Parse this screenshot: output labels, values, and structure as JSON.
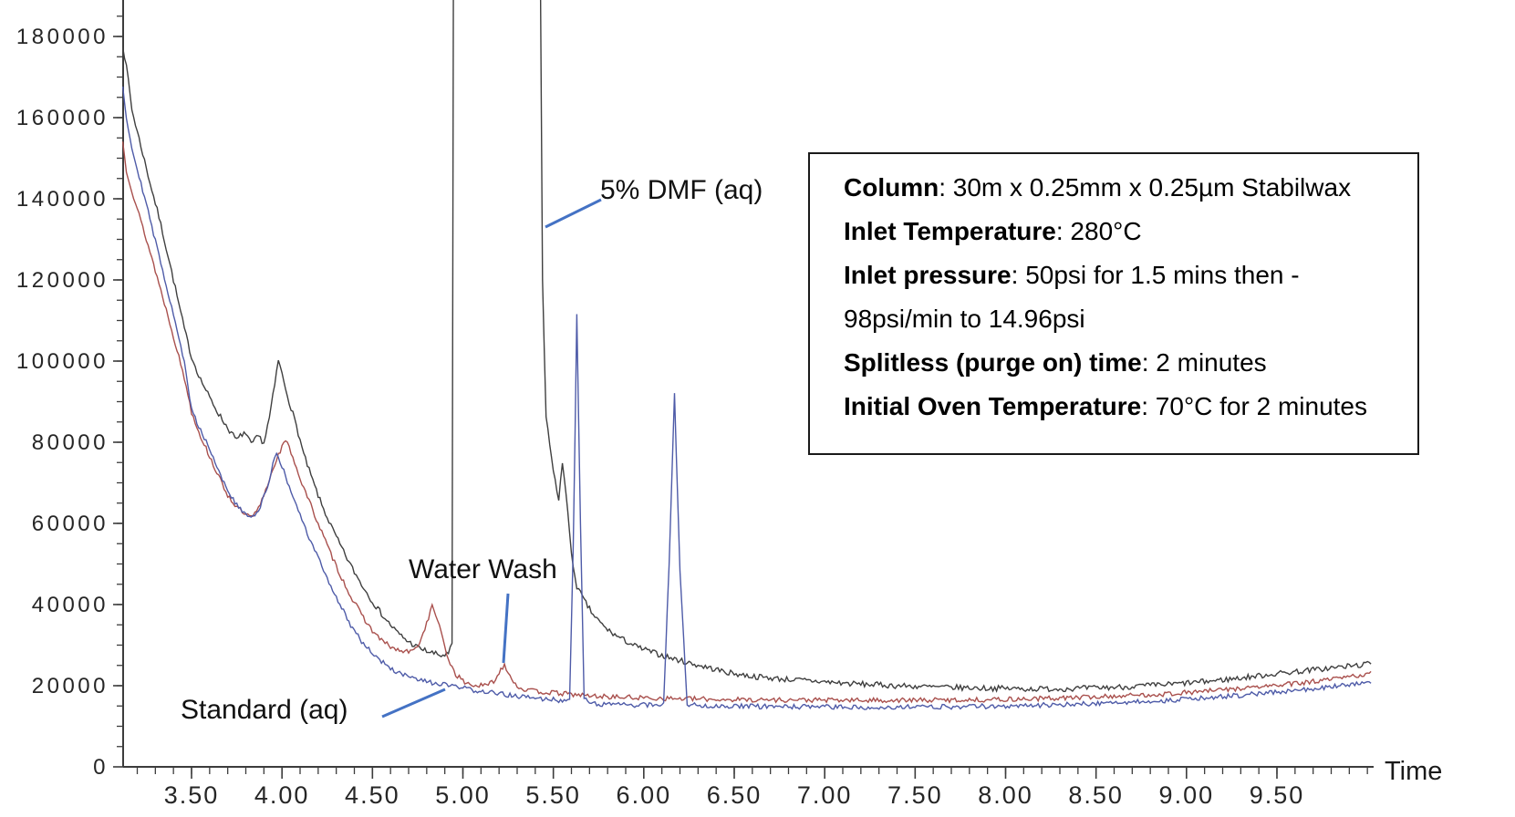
{
  "chart_data": {
    "type": "line",
    "title": "",
    "xlabel": "Time",
    "ylabel": "",
    "xlim": [
      3.12,
      10.03
    ],
    "ylim": [
      0,
      189000
    ],
    "grid": false,
    "legend_position": "none",
    "x_axis": {
      "label": "Time",
      "major_ticks": [
        3.5,
        4.0,
        4.5,
        5.0,
        5.5,
        6.0,
        6.5,
        7.0,
        7.5,
        8.0,
        8.5,
        9.0,
        9.5
      ],
      "major_tick_labels": [
        "3.50",
        "4.00",
        "4.50",
        "5.00",
        "5.50",
        "6.00",
        "6.50",
        "7.00",
        "7.50",
        "8.00",
        "8.50",
        "9.00",
        "9.50"
      ],
      "minor_step": 0.1,
      "minor_start": 3.2,
      "minor_end": 10.0
    },
    "y_axis": {
      "major_ticks": [
        0,
        20000,
        40000,
        60000,
        80000,
        100000,
        120000,
        140000,
        160000,
        180000
      ],
      "major_tick_labels": [
        "0",
        "20000",
        "40000",
        "60000",
        "80000",
        "100000",
        "120000",
        "140000",
        "160000",
        "180000"
      ],
      "minor_step": 5000,
      "minor_start": 5000,
      "minor_end": 185000
    },
    "series": [
      {
        "name": "5% DMF (aq)",
        "color": "#3f3f3f",
        "noise": 700,
        "seed": 7,
        "points": [
          [
            3.12,
            178000
          ],
          [
            3.15,
            169500
          ],
          [
            3.17,
            162000
          ],
          [
            3.22,
            153000
          ],
          [
            3.27,
            144000
          ],
          [
            3.32,
            135500
          ],
          [
            3.37,
            126000
          ],
          [
            3.42,
            116000
          ],
          [
            3.46,
            108000
          ],
          [
            3.5,
            101000
          ],
          [
            3.55,
            95500
          ],
          [
            3.6,
            91000
          ],
          [
            3.65,
            87000
          ],
          [
            3.7,
            83500
          ],
          [
            3.75,
            80500
          ],
          [
            3.79,
            82500
          ],
          [
            3.83,
            79500
          ],
          [
            3.87,
            81500
          ],
          [
            3.9,
            79800
          ],
          [
            3.93,
            86000
          ],
          [
            3.96,
            94000
          ],
          [
            3.98,
            100300
          ],
          [
            4.01,
            95000
          ],
          [
            4.04,
            90000
          ],
          [
            4.08,
            84000
          ],
          [
            4.12,
            77000
          ],
          [
            4.17,
            70500
          ],
          [
            4.22,
            64500
          ],
          [
            4.28,
            58500
          ],
          [
            4.34,
            53000
          ],
          [
            4.4,
            48000
          ],
          [
            4.46,
            43500
          ],
          [
            4.52,
            39500
          ],
          [
            4.58,
            36000
          ],
          [
            4.64,
            33000
          ],
          [
            4.7,
            30800
          ],
          [
            4.76,
            29200
          ],
          [
            4.82,
            28200
          ],
          [
            4.88,
            27400
          ],
          [
            4.92,
            27800
          ],
          [
            4.94,
            30000
          ],
          [
            4.95,
            250000
          ],
          [
            5.42,
            250000
          ],
          [
            5.44,
            120000
          ],
          [
            5.46,
            86000
          ],
          [
            5.49,
            76000
          ],
          [
            5.52,
            68000
          ],
          [
            5.53,
            65500
          ],
          [
            5.55,
            75000
          ],
          [
            5.57,
            68000
          ],
          [
            5.6,
            52000
          ],
          [
            5.63,
            44500
          ],
          [
            5.67,
            41000
          ],
          [
            5.72,
            37500
          ],
          [
            5.78,
            34500
          ],
          [
            5.84,
            32500
          ],
          [
            5.9,
            31000
          ],
          [
            5.97,
            29400
          ],
          [
            6.05,
            28200
          ],
          [
            6.15,
            26800
          ],
          [
            6.25,
            25600
          ],
          [
            6.37,
            24300
          ],
          [
            6.47,
            23200
          ],
          [
            6.6,
            22300
          ],
          [
            6.75,
            21700
          ],
          [
            6.95,
            21100
          ],
          [
            7.15,
            20500
          ],
          [
            7.4,
            20000
          ],
          [
            7.65,
            19600
          ],
          [
            7.9,
            19400
          ],
          [
            8.15,
            19200
          ],
          [
            8.4,
            19300
          ],
          [
            8.65,
            19700
          ],
          [
            8.9,
            20300
          ],
          [
            9.1,
            21000
          ],
          [
            9.3,
            21900
          ],
          [
            9.5,
            23000
          ],
          [
            9.7,
            23900
          ],
          [
            9.9,
            24800
          ],
          [
            10.02,
            25400
          ]
        ]
      },
      {
        "name": "Water Wash",
        "color": "#a9504d",
        "noise": 600,
        "seed": 13,
        "points": [
          [
            3.12,
            154000
          ],
          [
            3.14,
            147000
          ],
          [
            3.18,
            140500
          ],
          [
            3.23,
            133000
          ],
          [
            3.28,
            125500
          ],
          [
            3.33,
            117500
          ],
          [
            3.38,
            109500
          ],
          [
            3.43,
            101000
          ],
          [
            3.47,
            94000
          ],
          [
            3.5,
            87500
          ],
          [
            3.55,
            81500
          ],
          [
            3.6,
            76500
          ],
          [
            3.65,
            71500
          ],
          [
            3.7,
            67000
          ],
          [
            3.75,
            64000
          ],
          [
            3.8,
            62000
          ],
          [
            3.84,
            61500
          ],
          [
            3.88,
            64500
          ],
          [
            3.92,
            69500
          ],
          [
            3.97,
            76000
          ],
          [
            4.02,
            80500
          ],
          [
            4.06,
            76500
          ],
          [
            4.1,
            71000
          ],
          [
            4.15,
            65500
          ],
          [
            4.2,
            60000
          ],
          [
            4.26,
            53500
          ],
          [
            4.32,
            47500
          ],
          [
            4.38,
            42000
          ],
          [
            4.44,
            37500
          ],
          [
            4.5,
            33500
          ],
          [
            4.56,
            30800
          ],
          [
            4.62,
            29000
          ],
          [
            4.68,
            28300
          ],
          [
            4.73,
            28600
          ],
          [
            4.77,
            31500
          ],
          [
            4.8,
            35500
          ],
          [
            4.83,
            39500
          ],
          [
            4.86,
            36500
          ],
          [
            4.89,
            31000
          ],
          [
            4.92,
            26500
          ],
          [
            4.96,
            22800
          ],
          [
            5.01,
            20800
          ],
          [
            5.07,
            20000
          ],
          [
            5.13,
            20000
          ],
          [
            5.18,
            21500
          ],
          [
            5.21,
            24000
          ],
          [
            5.23,
            25300
          ],
          [
            5.26,
            22500
          ],
          [
            5.3,
            19800
          ],
          [
            5.36,
            18800
          ],
          [
            5.45,
            18400
          ],
          [
            5.57,
            18000
          ],
          [
            5.7,
            17500
          ],
          [
            5.85,
            17200
          ],
          [
            6.0,
            17000
          ],
          [
            6.2,
            16800
          ],
          [
            6.45,
            16600
          ],
          [
            6.75,
            16500
          ],
          [
            7.1,
            16400
          ],
          [
            7.45,
            16400
          ],
          [
            7.8,
            16500
          ],
          [
            8.1,
            16700
          ],
          [
            8.4,
            17100
          ],
          [
            8.65,
            17500
          ],
          [
            8.9,
            18000
          ],
          [
            9.15,
            18800
          ],
          [
            9.4,
            19700
          ],
          [
            9.6,
            20500
          ],
          [
            9.8,
            21500
          ],
          [
            10.02,
            23000
          ]
        ]
      },
      {
        "name": "Standard (aq)",
        "color": "#4e5ba8",
        "noise": 600,
        "seed": 29,
        "points": [
          [
            3.12,
            168000
          ],
          [
            3.14,
            160000
          ],
          [
            3.17,
            152500
          ],
          [
            3.22,
            144000
          ],
          [
            3.27,
            135000
          ],
          [
            3.32,
            126000
          ],
          [
            3.37,
            117000
          ],
          [
            3.42,
            108000
          ],
          [
            3.46,
            99500
          ],
          [
            3.5,
            88000
          ],
          [
            3.55,
            83000
          ],
          [
            3.6,
            78500
          ],
          [
            3.65,
            73000
          ],
          [
            3.7,
            68000
          ],
          [
            3.75,
            64500
          ],
          [
            3.8,
            62000
          ],
          [
            3.84,
            61500
          ],
          [
            3.88,
            64000
          ],
          [
            3.92,
            69000
          ],
          [
            3.95,
            75000
          ],
          [
            3.97,
            77300
          ],
          [
            4.0,
            74000
          ],
          [
            4.04,
            69000
          ],
          [
            4.09,
            63000
          ],
          [
            4.14,
            57500
          ],
          [
            4.2,
            51500
          ],
          [
            4.26,
            45500
          ],
          [
            4.32,
            40000
          ],
          [
            4.38,
            35000
          ],
          [
            4.44,
            31000
          ],
          [
            4.5,
            28000
          ],
          [
            4.57,
            25200
          ],
          [
            4.64,
            23200
          ],
          [
            4.72,
            21800
          ],
          [
            4.8,
            20900
          ],
          [
            4.9,
            20200
          ],
          [
            5.0,
            19400
          ],
          [
            5.1,
            18600
          ],
          [
            5.2,
            18000
          ],
          [
            5.3,
            17400
          ],
          [
            5.4,
            16900
          ],
          [
            5.48,
            16600
          ],
          [
            5.55,
            16400
          ],
          [
            5.59,
            17000
          ],
          [
            5.61,
            55000
          ],
          [
            5.63,
            111000
          ],
          [
            5.65,
            60000
          ],
          [
            5.67,
            17000
          ],
          [
            5.7,
            15800
          ],
          [
            5.8,
            15400
          ],
          [
            5.95,
            15200
          ],
          [
            6.05,
            15300
          ],
          [
            6.11,
            15600
          ],
          [
            6.14,
            50000
          ],
          [
            6.17,
            92000
          ],
          [
            6.2,
            48000
          ],
          [
            6.24,
            15400
          ],
          [
            6.35,
            15100
          ],
          [
            6.55,
            14900
          ],
          [
            6.8,
            14800
          ],
          [
            7.1,
            14700
          ],
          [
            7.4,
            14700
          ],
          [
            7.7,
            14800
          ],
          [
            8.0,
            15000
          ],
          [
            8.3,
            15300
          ],
          [
            8.6,
            15800
          ],
          [
            8.9,
            16400
          ],
          [
            9.15,
            17100
          ],
          [
            9.4,
            18000
          ],
          [
            9.65,
            19000
          ],
          [
            9.9,
            20200
          ],
          [
            10.02,
            21000
          ]
        ]
      }
    ]
  },
  "annotations": {
    "dmf": {
      "text": "5% DMF (aq)"
    },
    "water_wash": {
      "text": "Water Wash"
    },
    "standard": {
      "text": "Standard (aq)"
    },
    "time_axis": {
      "text": "Time"
    }
  },
  "info_box": {
    "lines": [
      {
        "label": "Column",
        "value": ": 30m x 0.25mm x 0.25µm Stabilwax"
      },
      {
        "label": "Inlet Temperature",
        "value": ": 280°C"
      },
      {
        "label": "Inlet pressure",
        "value": ": 50psi for 1.5 mins then -"
      },
      {
        "label": "",
        "value": "98psi/min to 14.96psi"
      },
      {
        "label": "Splitless (purge on) time",
        "value": ": 2 minutes"
      },
      {
        "label": "Initial Oven Temperature",
        "value": ": 70°C for 2 minutes"
      }
    ]
  },
  "colors": {
    "leader_line": "#4472c4",
    "axis": "#3c3c3c",
    "tick_text": "#262626"
  }
}
